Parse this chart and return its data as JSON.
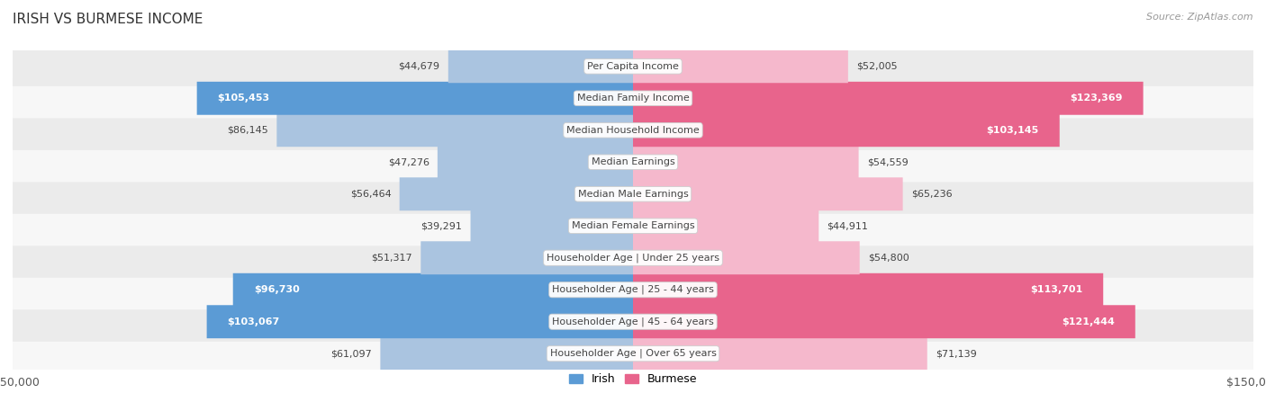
{
  "title": "IRISH VS BURMESE INCOME",
  "source": "Source: ZipAtlas.com",
  "categories": [
    "Per Capita Income",
    "Median Family Income",
    "Median Household Income",
    "Median Earnings",
    "Median Male Earnings",
    "Median Female Earnings",
    "Householder Age | Under 25 years",
    "Householder Age | 25 - 44 years",
    "Householder Age | 45 - 64 years",
    "Householder Age | Over 65 years"
  ],
  "irish_values": [
    44679,
    105453,
    86145,
    47276,
    56464,
    39291,
    51317,
    96730,
    103067,
    61097
  ],
  "burmese_values": [
    52005,
    123369,
    103145,
    54559,
    65236,
    44911,
    54800,
    113701,
    121444,
    71139
  ],
  "irish_labels": [
    "$44,679",
    "$105,453",
    "$86,145",
    "$47,276",
    "$56,464",
    "$39,291",
    "$51,317",
    "$96,730",
    "$103,067",
    "$61,097"
  ],
  "burmese_labels": [
    "$52,005",
    "$123,369",
    "$103,145",
    "$54,559",
    "$65,236",
    "$44,911",
    "$54,800",
    "$113,701",
    "$121,444",
    "$71,139"
  ],
  "irish_color_light": "#aac4e0",
  "irish_color_dark": "#5b9bd5",
  "burmese_color_light": "#f5b8cc",
  "burmese_color_dark": "#e8648c",
  "max_value": 150000,
  "label_fontsize": 8.0,
  "cat_fontsize": 8.0,
  "title_fontsize": 11,
  "legend_fontsize": 9,
  "row_bg_even": "#ebebeb",
  "row_bg_odd": "#f7f7f7",
  "irish_threshold": 90000,
  "burmese_threshold": 100000
}
